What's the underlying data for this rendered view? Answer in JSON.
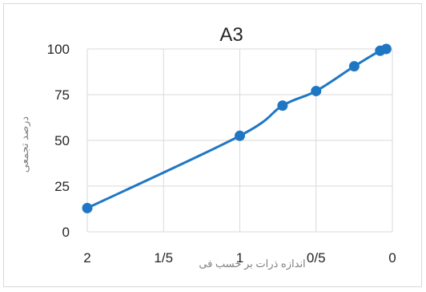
{
  "chart_data": {
    "type": "line",
    "title": "A3",
    "xlabel": "اندازه ذرات بر حسب فی",
    "ylabel": "درصد تجمعی",
    "x_reversed": true,
    "xlim": [
      0,
      2
    ],
    "ylim": [
      0,
      100
    ],
    "x_ticks": [
      2,
      1.5,
      1,
      0.5,
      0
    ],
    "x_tick_labels": [
      "2",
      "1/5",
      "1",
      "0/5",
      "0"
    ],
    "y_ticks": [
      0,
      25,
      50,
      75,
      100
    ],
    "y_tick_labels": [
      "0",
      "25",
      "50",
      "75",
      "100"
    ],
    "grid": true,
    "series": [
      {
        "color": "#1f77c4",
        "points": [
          {
            "x": 2.0,
            "y": 13
          },
          {
            "x": 1.0,
            "y": 52.5
          },
          {
            "x": 0.72,
            "y": 69
          },
          {
            "x": 0.5,
            "y": 77
          },
          {
            "x": 0.25,
            "y": 90.5
          },
          {
            "x": 0.08,
            "y": 99
          },
          {
            "x": 0.04,
            "y": 100
          }
        ]
      }
    ]
  }
}
